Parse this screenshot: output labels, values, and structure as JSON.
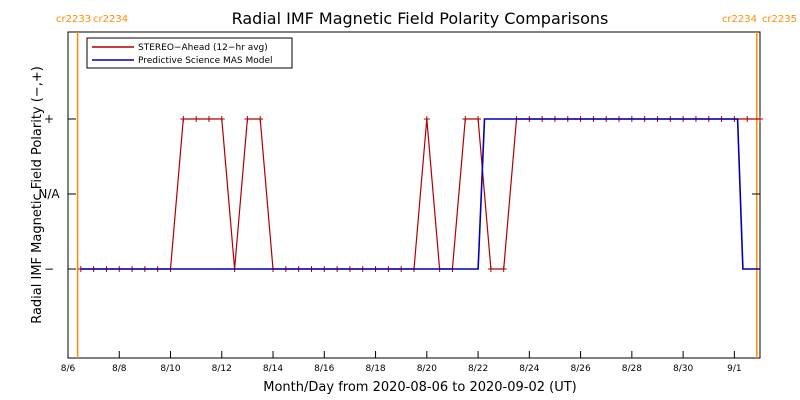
{
  "chart_data": {
    "type": "line",
    "title": "Radial IMF Magnetic Field Polarity Comparisons",
    "xlabel": "Month/Day from 2020-08-06 to 2020-09-02 (UT)",
    "ylabel": "Radial IMF Magnetic Field Polarity (−,+)",
    "x_range": [
      "2020-08-06T00:00",
      "2020-09-02T00:00"
    ],
    "x_ticks": [
      "8/6",
      "8/8",
      "8/10",
      "8/12",
      "8/14",
      "8/16",
      "8/18",
      "8/20",
      "8/22",
      "8/24",
      "8/26",
      "8/28",
      "8/30",
      "9/1"
    ],
    "y_ticks": [
      "−",
      "N/A",
      "+"
    ],
    "y_categories": [
      "−",
      "N/A",
      "+"
    ],
    "carrington_markers": [
      {
        "left": "cr2233",
        "right": "cr2234",
        "time": "2020-08-06T09:00",
        "color": "#ff8c00"
      },
      {
        "left": "cr2234",
        "right": "cr2235",
        "time": "2020-09-01T21:00",
        "color": "#ff8c00"
      }
    ],
    "legend": {
      "placement": "top-left"
    },
    "series": [
      {
        "name": "STEREO−Ahead (12−hr avg)",
        "color": "#b00000",
        "marker": "+",
        "points": [
          [
            "2020-08-06T12:00",
            "−"
          ],
          [
            "2020-08-07T00:00",
            "−"
          ],
          [
            "2020-08-07T12:00",
            "−"
          ],
          [
            "2020-08-08T00:00",
            "−"
          ],
          [
            "2020-08-08T12:00",
            "−"
          ],
          [
            "2020-08-09T00:00",
            "−"
          ],
          [
            "2020-08-09T12:00",
            "−"
          ],
          [
            "2020-08-10T00:00",
            "−"
          ],
          [
            "2020-08-10T12:00",
            "+"
          ],
          [
            "2020-08-11T00:00",
            "+"
          ],
          [
            "2020-08-11T12:00",
            "+"
          ],
          [
            "2020-08-12T00:00",
            "+"
          ],
          [
            "2020-08-12T12:00",
            "−"
          ],
          [
            "2020-08-13T00:00",
            "+"
          ],
          [
            "2020-08-13T12:00",
            "+"
          ],
          [
            "2020-08-14T00:00",
            "−"
          ],
          [
            "2020-08-14T12:00",
            "−"
          ],
          [
            "2020-08-15T00:00",
            "−"
          ],
          [
            "2020-08-15T12:00",
            "−"
          ],
          [
            "2020-08-16T00:00",
            "−"
          ],
          [
            "2020-08-16T12:00",
            "−"
          ],
          [
            "2020-08-17T00:00",
            "−"
          ],
          [
            "2020-08-17T12:00",
            "−"
          ],
          [
            "2020-08-18T00:00",
            "−"
          ],
          [
            "2020-08-18T12:00",
            "−"
          ],
          [
            "2020-08-19T00:00",
            "−"
          ],
          [
            "2020-08-19T12:00",
            "−"
          ],
          [
            "2020-08-20T00:00",
            "+"
          ],
          [
            "2020-08-20T12:00",
            "−"
          ],
          [
            "2020-08-21T00:00",
            "−"
          ],
          [
            "2020-08-21T12:00",
            "+"
          ],
          [
            "2020-08-22T00:00",
            "+"
          ],
          [
            "2020-08-22T12:00",
            "−"
          ],
          [
            "2020-08-23T00:00",
            "−"
          ],
          [
            "2020-08-23T12:00",
            "+"
          ],
          [
            "2020-08-24T00:00",
            "+"
          ],
          [
            "2020-08-24T12:00",
            "+"
          ],
          [
            "2020-08-25T00:00",
            "+"
          ],
          [
            "2020-08-25T12:00",
            "+"
          ],
          [
            "2020-08-26T00:00",
            "+"
          ],
          [
            "2020-08-26T12:00",
            "+"
          ],
          [
            "2020-08-27T00:00",
            "+"
          ],
          [
            "2020-08-27T12:00",
            "+"
          ],
          [
            "2020-08-28T00:00",
            "+"
          ],
          [
            "2020-08-28T12:00",
            "+"
          ],
          [
            "2020-08-29T00:00",
            "+"
          ],
          [
            "2020-08-29T12:00",
            "+"
          ],
          [
            "2020-08-30T00:00",
            "+"
          ],
          [
            "2020-08-30T12:00",
            "+"
          ],
          [
            "2020-08-31T00:00",
            "+"
          ],
          [
            "2020-08-31T12:00",
            "+"
          ],
          [
            "2020-09-01T00:00",
            "+"
          ],
          [
            "2020-09-01T12:00",
            "+"
          ],
          [
            "2020-09-02T00:00",
            "+"
          ]
        ]
      },
      {
        "name": "Predictive Science MAS Model",
        "color": "#0000b4",
        "points": [
          [
            "2020-08-06T12:00",
            "−"
          ],
          [
            "2020-08-22T00:00",
            "−"
          ],
          [
            "2020-08-22T06:00",
            "+"
          ],
          [
            "2020-09-01T03:00",
            "+"
          ],
          [
            "2020-09-01T08:00",
            "−"
          ],
          [
            "2020-09-02T00:00",
            "−"
          ]
        ]
      }
    ]
  }
}
